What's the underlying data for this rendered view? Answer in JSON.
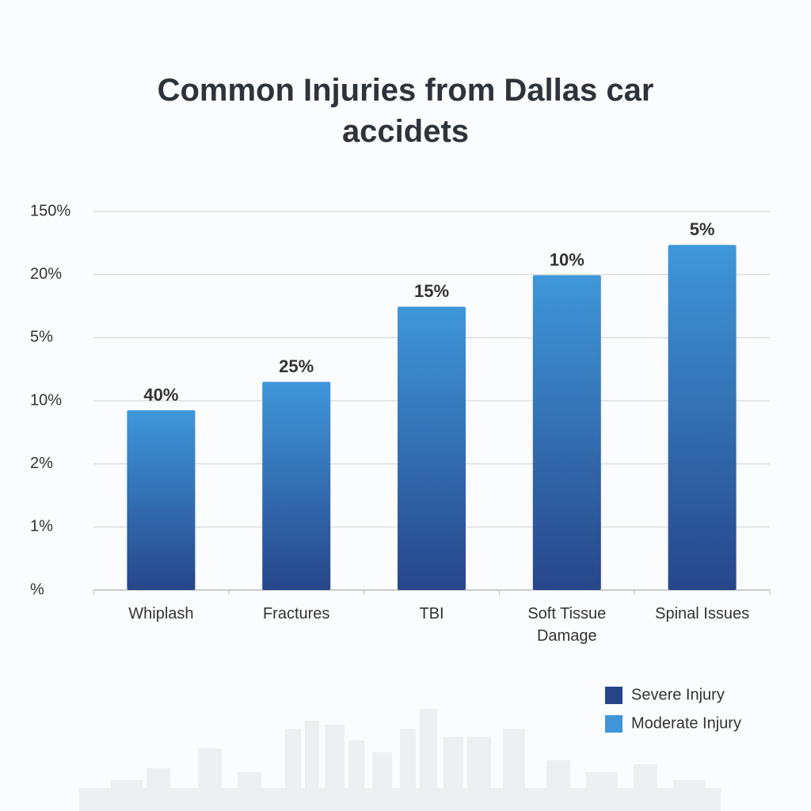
{
  "chart_data": {
    "type": "bar",
    "title": "Common Injuries from Dallas car accidets",
    "categories": [
      "Whiplash",
      "Fractures",
      "TBI",
      "Soft Tissue Damage",
      "Spinal Issues"
    ],
    "values": [
      2.85,
      3.3,
      4.49,
      4.99,
      5.47
    ],
    "annotations": [
      "40%",
      "25%",
      "15%",
      "10%",
      "5%"
    ],
    "ylim": [
      0,
      6
    ],
    "yticks": [
      {
        "value": 0,
        "label": "%"
      },
      {
        "value": 1,
        "label": "1%"
      },
      {
        "value": 2,
        "label": "2%"
      },
      {
        "value": 3,
        "label": "10%"
      },
      {
        "value": 4,
        "label": "5%"
      },
      {
        "value": 5,
        "label": "20%"
      },
      {
        "value": 6,
        "label": "150%"
      }
    ],
    "grid": true,
    "colors": [
      "#3f97da",
      "#27468a"
    ],
    "legend": [
      {
        "name": "Severe Injury",
        "color": "#27468a"
      },
      {
        "name": "Moderate Injury",
        "color": "#3f95d8"
      }
    ]
  }
}
